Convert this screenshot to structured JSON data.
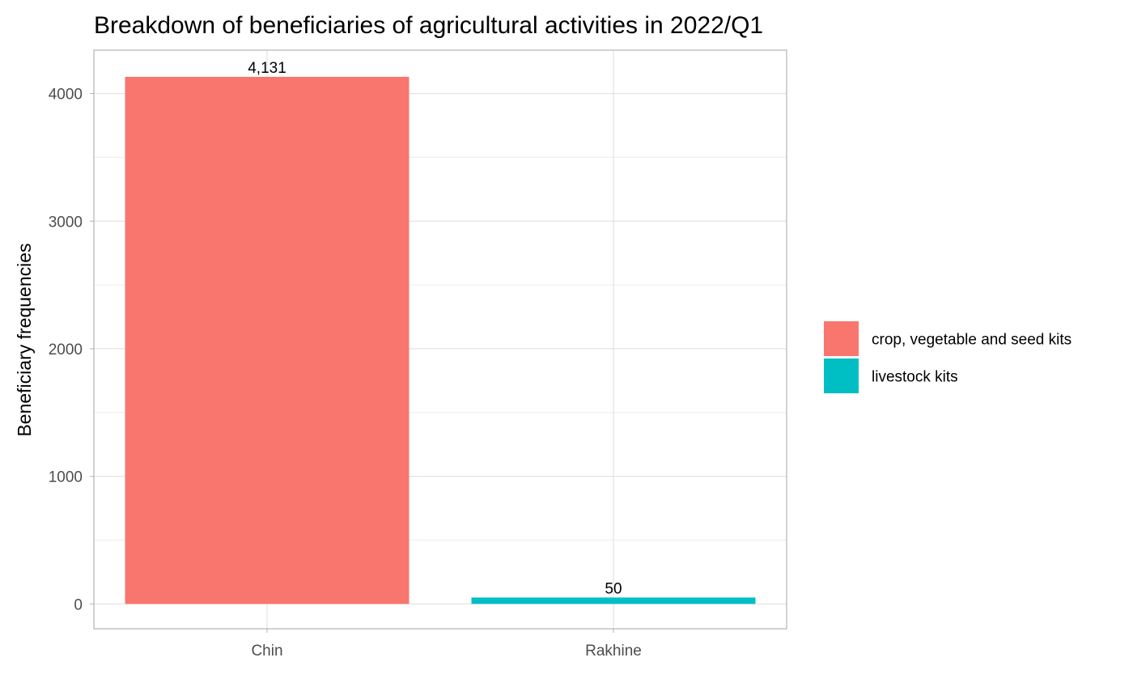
{
  "chart_data": {
    "type": "bar",
    "title": "Breakdown of beneficiaries of agricultural activities in 2022/Q1",
    "xlabel": "",
    "ylabel": "Beneficiary frequencies",
    "categories": [
      "Chin",
      "Rakhine"
    ],
    "values": [
      4131,
      50
    ],
    "data_labels": [
      "4,131",
      "50"
    ],
    "bar_colors": [
      "#F8766D",
      "#00BFC4"
    ],
    "ylim": [
      -195,
      4340
    ],
    "y_ticks": [
      0,
      1000,
      2000,
      3000,
      4000
    ],
    "y_tick_labels": [
      "0",
      "1000",
      "2000",
      "3000",
      "4000"
    ],
    "grid": true,
    "legend": {
      "placement": "right",
      "entries": [
        {
          "label": "crop, vegetable and seed kits",
          "color": "#F8766D"
        },
        {
          "label": "livestock kits",
          "color": "#00BFC4"
        }
      ]
    }
  }
}
